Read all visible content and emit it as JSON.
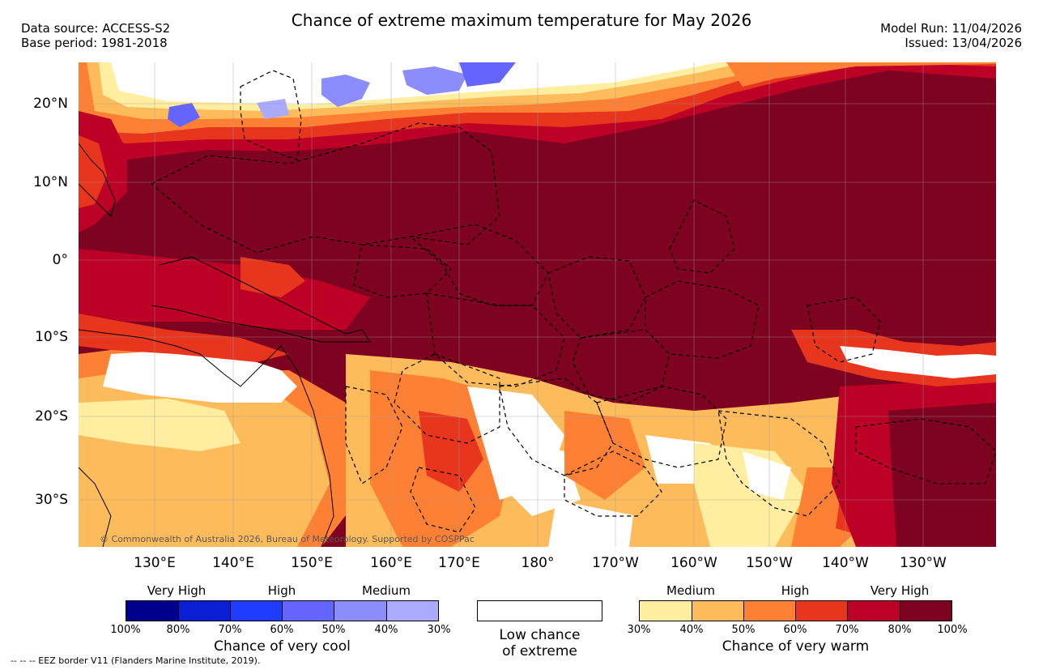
{
  "header": {
    "title": "Chance of extreme maximum temperature for May 2026",
    "data_source": "Data source: ACCESS-S2",
    "base_period": "Base period: 1981-2018",
    "model_run": "Model Run: 11/04/2026",
    "issued": "Issued: 13/04/2026"
  },
  "axes": {
    "lat_labels": [
      "20°N",
      "10°N",
      "0°",
      "10°S",
      "20°S",
      "30°S"
    ],
    "lon_labels": [
      "130°E",
      "140°E",
      "150°E",
      "160°E",
      "170°E",
      "180°",
      "170°W",
      "160°W",
      "150°W",
      "140°W",
      "130°W"
    ]
  },
  "map": {
    "copyright": "© Commonwealth of Australia 2026, Bureau of Meteorology. Supported by COSPPac"
  },
  "legend": {
    "cool": {
      "categories": [
        "Very High",
        "High",
        "Medium"
      ],
      "percent_labels": [
        "100%",
        "80%",
        "70%",
        "60%",
        "50%",
        "40%",
        "30%"
      ],
      "colors": [
        "#00008c",
        "#0a1ed4",
        "#1f3cff",
        "#6464ff",
        "#8c8cff",
        "#aaaaff"
      ],
      "caption": "Chance of very cool"
    },
    "neutral": {
      "caption_line1": "Low chance",
      "caption_line2": "of extreme",
      "color": "#ffffff"
    },
    "warm": {
      "categories": [
        "Medium",
        "High",
        "Very High"
      ],
      "percent_labels": [
        "30%",
        "40%",
        "50%",
        "60%",
        "70%",
        "80%",
        "100%"
      ],
      "colors": [
        "#ffeda0",
        "#fdbb5c",
        "#fd8035",
        "#e8361e",
        "#bd0026",
        "#7d0320"
      ],
      "caption": "Chance of very warm"
    }
  },
  "footer": {
    "eez_note": "-- -- -- EEZ border V11 (Flanders Marine Institute, 2019)."
  }
}
